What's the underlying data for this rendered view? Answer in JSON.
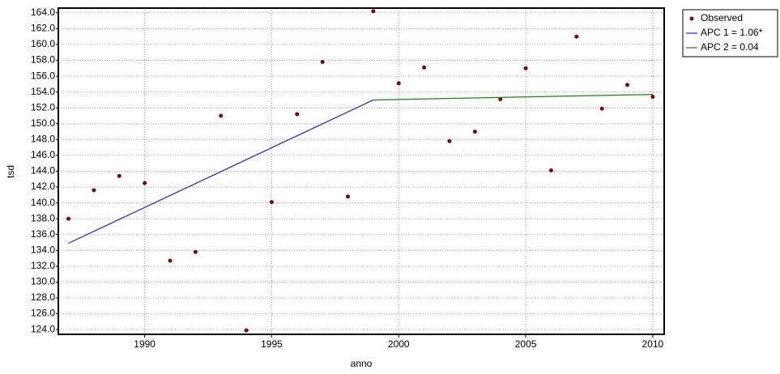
{
  "chart_data": {
    "type": "scatter",
    "x_label": "anno",
    "y_label": "tsd",
    "xlim": [
      1986.6,
      2010.45
    ],
    "ylim": [
      123.4,
      164.6
    ],
    "xticks": [
      1990,
      1995,
      2000,
      2005,
      2010
    ],
    "yticks": [
      {
        "value": 124,
        "label": "124.0"
      },
      {
        "value": 126,
        "label": "126.0"
      },
      {
        "value": 128,
        "label": "128.0"
      },
      {
        "value": 130,
        "label": "130.0"
      },
      {
        "value": 132,
        "label": "132.0"
      },
      {
        "value": 134,
        "label": "134.0"
      },
      {
        "value": 136,
        "label": "136.0"
      },
      {
        "value": 138,
        "label": "138.0"
      },
      {
        "value": 140,
        "label": "140.0"
      },
      {
        "value": 142,
        "label": "142.0"
      },
      {
        "value": 144,
        "label": "144.0"
      },
      {
        "value": 146,
        "label": "146.0"
      },
      {
        "value": 148,
        "label": "148.0"
      },
      {
        "value": 150,
        "label": "150.0"
      },
      {
        "value": 152,
        "label": "152.0"
      },
      {
        "value": 154,
        "label": "154.0"
      },
      {
        "value": 156,
        "label": "156.0"
      },
      {
        "value": 158,
        "label": "158.0"
      },
      {
        "value": 160,
        "label": "160.0"
      },
      {
        "value": 162,
        "label": "162.0"
      },
      {
        "value": 164,
        "label": "164.0"
      }
    ],
    "grid": true,
    "legend": "outside-right-top",
    "series": [
      {
        "name": "Observed",
        "type": "scatter",
        "color": "#8b0000",
        "x": [
          1987,
          1988,
          1989,
          1990,
          1991,
          1992,
          1993,
          1994,
          1995,
          1996,
          1997,
          1998,
          1999,
          2000,
          2001,
          2002,
          2003,
          2004,
          2005,
          2006,
          2007,
          2008,
          2009,
          2010
        ],
        "values": [
          138.0,
          141.6,
          143.4,
          142.5,
          132.7,
          133.8,
          151.0,
          123.9,
          140.1,
          151.2,
          157.8,
          140.8,
          164.2,
          155.1,
          157.1,
          147.8,
          149.0,
          153.1,
          157.0,
          144.1,
          161.0,
          151.9,
          154.9,
          153.4
        ]
      },
      {
        "name": "APC 1 = 1.06*",
        "type": "line",
        "color": "#2222dd",
        "x": [
          1987,
          1999
        ],
        "values": [
          134.9,
          153.0
        ]
      },
      {
        "name": "APC 2 = 0.04",
        "type": "line",
        "color": "#118811",
        "x": [
          1999,
          2010
        ],
        "values": [
          153.0,
          153.7
        ]
      }
    ]
  }
}
